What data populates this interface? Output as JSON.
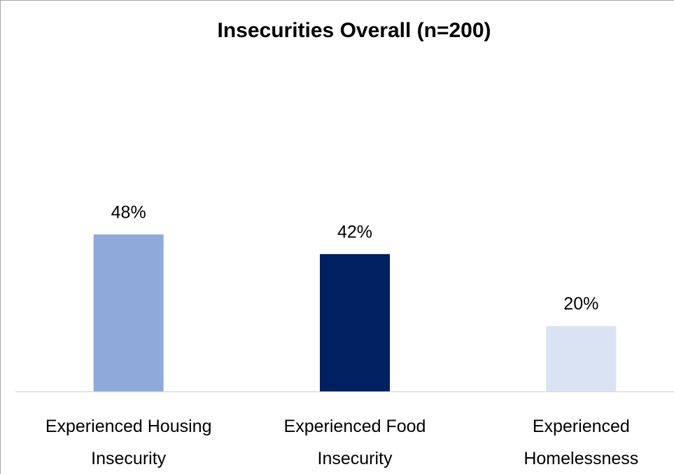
{
  "chart_data": {
    "type": "bar",
    "title": "Insecurities Overall (n=200)",
    "categories": [
      "Experienced Housing Insecurity",
      "Experienced Food Insecurity",
      "Experienced Homelessness"
    ],
    "values": [
      48,
      42,
      20
    ],
    "value_labels": [
      "48%",
      "42%",
      "20%"
    ],
    "colors": [
      "#8eaadb",
      "#002060",
      "#dae3f3"
    ],
    "ylim": [
      0,
      100
    ],
    "grid": false
  }
}
